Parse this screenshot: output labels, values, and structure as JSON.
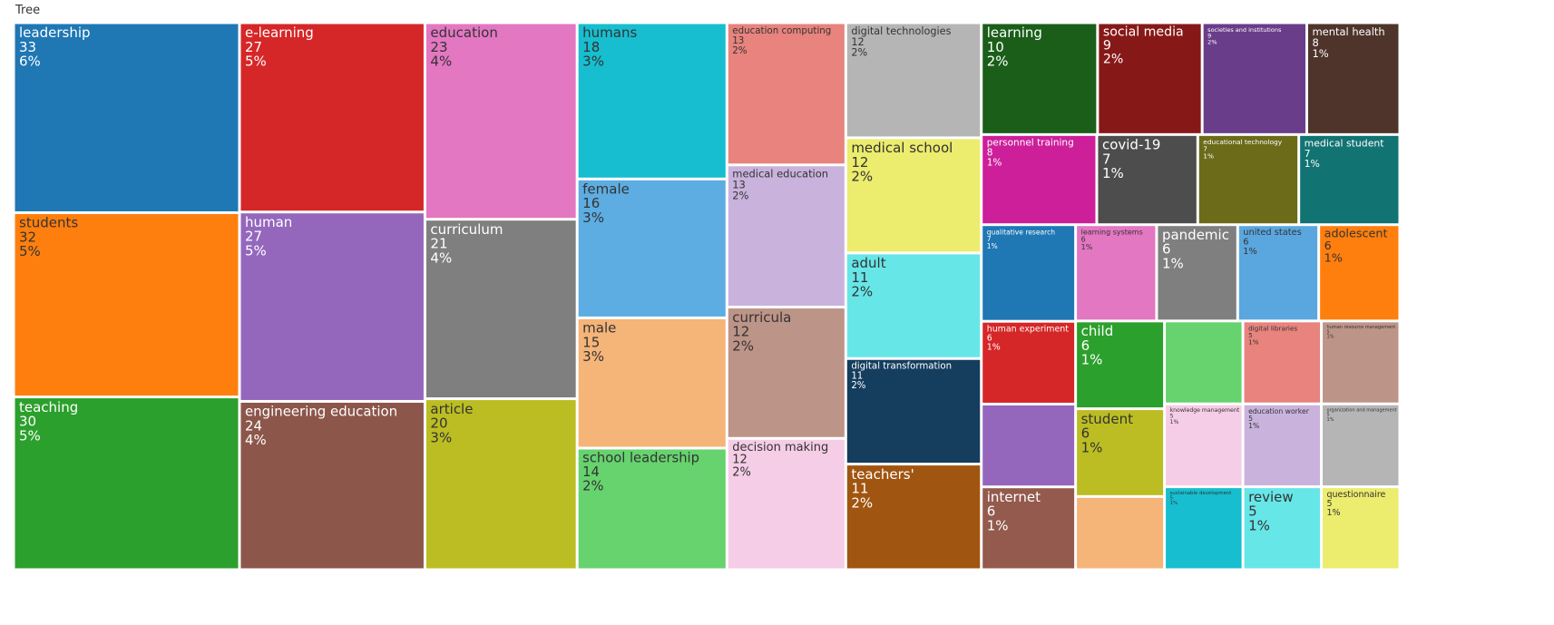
{
  "chart_data": {
    "type": "treemap",
    "title": "Tree",
    "categories": [
      "leadership",
      "students",
      "teaching",
      "e-learning",
      "human",
      "engineering education",
      "education",
      "curriculum",
      "article",
      "humans",
      "female",
      "male",
      "school leadership",
      "education computing",
      "medical education",
      "curricula",
      "decision making",
      "digital technologies",
      "medical school",
      "adult",
      "digital transformation",
      "teachers'",
      "learning",
      "social media",
      "societies and institutions",
      "mental health",
      "personnel training",
      "covid-19",
      "educational technology",
      "medical student",
      "qualitative research",
      "human experiment",
      null,
      "internet",
      "learning systems",
      "pandemic",
      "united states",
      "adolescent",
      "child",
      "student",
      null,
      null,
      "digital libraries",
      "human resource management",
      "knowledge management",
      "sustainable development",
      "education worker",
      "organization and management",
      "review",
      "questionnaire"
    ],
    "values": [
      33,
      32,
      30,
      27,
      27,
      24,
      23,
      21,
      20,
      18,
      16,
      15,
      14,
      13,
      13,
      12,
      12,
      12,
      12,
      11,
      11,
      11,
      10,
      9,
      9,
      8,
      8,
      7,
      7,
      7,
      7,
      6,
      6,
      6,
      6,
      6,
      6,
      6,
      6,
      6,
      5,
      5,
      5,
      5,
      5,
      5,
      5,
      5,
      5,
      5
    ],
    "share_labels": [
      "6%",
      "5%",
      "5%",
      "5%",
      "5%",
      "4%",
      "4%",
      "4%",
      "3%",
      "3%",
      "3%",
      "3%",
      "2%",
      "2%",
      "2%",
      "2%",
      "2%",
      "2%",
      "2%",
      "2%",
      "2%",
      "2%",
      "2%",
      "2%",
      "2%",
      "1%",
      "1%",
      "1%",
      "1%",
      "1%",
      "1%",
      "1%",
      null,
      "1%",
      "1%",
      "1%",
      "1%",
      "1%",
      "1%",
      "1%",
      null,
      null,
      "1%",
      "1%",
      "1%",
      "1%",
      "1%",
      "1%",
      "1%",
      "1%"
    ],
    "colors": [
      "#1f77b4",
      "#ff7f0e",
      "#2ca02c",
      "#d62728",
      "#9467bd",
      "#8c564b",
      "#e377c2",
      "#7f7f7f",
      "#bcbd22",
      "#17becf",
      "#5dade2",
      "#f5b478",
      "#66d36e",
      "#e8837d",
      "#c9b3dd",
      "#bd9488",
      "#f5cde6",
      "#b5b5b5",
      "#ecec6e",
      "#67e6e8",
      "#143d5e",
      "#a05510",
      "#1a5e1a",
      "#871818",
      "#6a3d8a",
      "#4e342b",
      "#cc1f99",
      "#4d4d4d",
      "#6b6b1a",
      "#127373",
      "#1f77b4",
      "#d62728",
      "#9467bd",
      "#935a4d",
      "#e377c2",
      "#7f7f7f",
      "#5aa7e0",
      "#ff7f0e",
      "#2ca02c",
      "#bcbd22",
      "#f5b478",
      "#66d36e",
      "#e8837d",
      "#bd9488",
      "#f5cde6",
      "#17becf",
      "#c9b3dd",
      "#b5b5b5",
      "#67e6e8",
      "#ecec6e"
    ]
  }
}
